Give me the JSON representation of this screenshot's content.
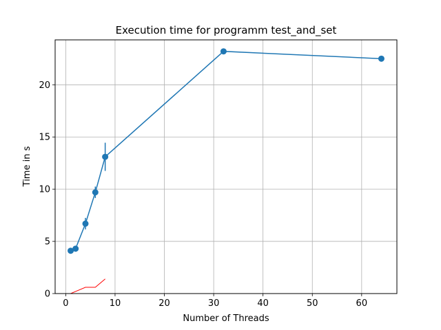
{
  "chart_data": {
    "type": "line",
    "title": "Execution time for programm test_and_set",
    "xlabel": "Number of Threads",
    "ylabel": "Time in s",
    "xlim": [
      -2.15,
      67.15
    ],
    "ylim": [
      0,
      24.3
    ],
    "xticks": [
      0,
      10,
      20,
      30,
      40,
      50,
      60
    ],
    "yticks": [
      0,
      5,
      10,
      15,
      20
    ],
    "grid": true,
    "series": [
      {
        "color": "#1f77b4",
        "marker": "circle",
        "x": [
          1,
          2,
          4,
          6,
          8,
          32,
          64
        ],
        "y": [
          4.1,
          4.3,
          6.7,
          9.7,
          13.1,
          23.2,
          22.5
        ],
        "yerr": [
          0.15,
          0.2,
          0.55,
          0.55,
          1.35,
          0.15,
          0.15
        ]
      },
      {
        "color": "#ff0000",
        "marker": "none",
        "x": [
          1,
          2,
          4,
          6,
          8
        ],
        "y": [
          0.0,
          0.2,
          0.6,
          0.6,
          1.4
        ]
      }
    ]
  }
}
